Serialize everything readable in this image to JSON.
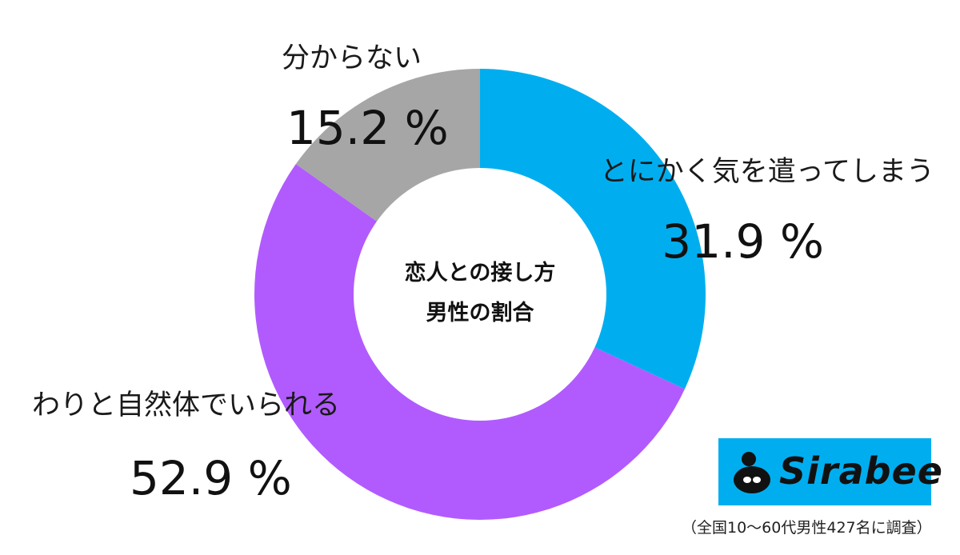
{
  "chart_data": {
    "type": "pie",
    "title": "恋人との接し方",
    "subtitle": "男性の割合",
    "slices": [
      {
        "label": "とにかく気を遣ってしまう",
        "value": 31.9,
        "display": "31.9 %",
        "color": "#00aeef"
      },
      {
        "label": "わりと自然体でいられる",
        "value": 52.9,
        "display": "52.9 %",
        "color": "#b15bff"
      },
      {
        "label": "分からない",
        "value": 15.2,
        "display": "15.2 %",
        "color": "#a6a6a6"
      }
    ],
    "donut": true,
    "start": "top",
    "direction": "clockwise"
  },
  "branding": {
    "logo_text": "Sirabee",
    "logo_color": "#00aeef"
  },
  "source_note": "（全国10～60代男性427名に調査）"
}
